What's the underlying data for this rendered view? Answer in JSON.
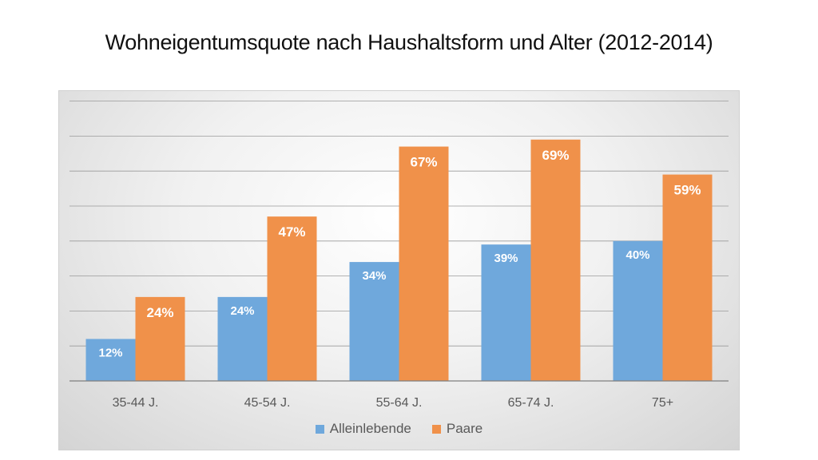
{
  "chart_data": {
    "type": "bar",
    "title": "Wohneigentumsquote nach Haushaltsform und Alter (2012-2014)",
    "categories": [
      "35-44 J.",
      "45-54 J.",
      "55-64 J.",
      "65-74 J.",
      "75+"
    ],
    "series": [
      {
        "name": "Alleinlebende",
        "values": [
          12,
          24,
          34,
          39,
          40
        ],
        "labels": [
          "12%",
          "24%",
          "34%",
          "39%",
          "40%"
        ],
        "color": "#6fa8dc"
      },
      {
        "name": "Paare",
        "values": [
          24,
          47,
          67,
          69,
          59
        ],
        "labels": [
          "24%",
          "47%",
          "67%",
          "69%",
          "59%"
        ],
        "color": "#f0914a"
      }
    ],
    "ylim": [
      0,
      80
    ],
    "grid": true,
    "legend_position": "bottom"
  }
}
